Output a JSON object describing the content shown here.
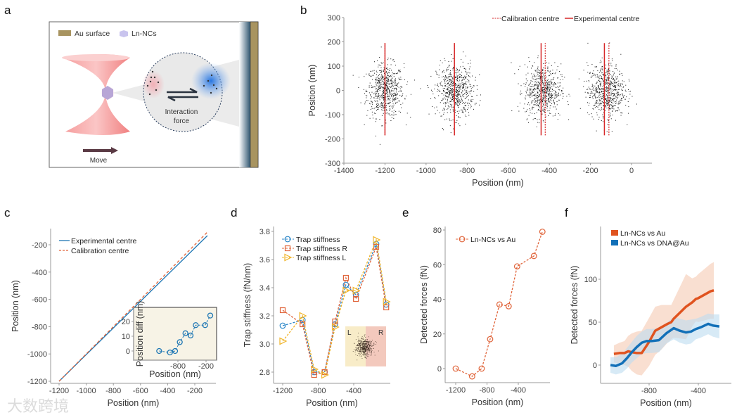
{
  "panel_labels": [
    "a",
    "b",
    "c",
    "d",
    "e",
    "f"
  ],
  "watermark": "大数跨境",
  "panel_a": {
    "legend_au": "Au surface",
    "legend_ln": "Ln-NCs",
    "interaction_line1": "Interaction",
    "interaction_line2": "force",
    "move": "Move",
    "colors": {
      "au": "#a89460",
      "beam": "#f08a8a",
      "nc": "#b9a9d8",
      "arrow": "#5a3a44"
    }
  },
  "chart_data": [
    {
      "panel": "b",
      "type": "scatter",
      "xlabel": "Position (nm)",
      "ylabel": "Position (nm)",
      "xlim": [
        -1400,
        100
      ],
      "ylim": [
        -300,
        300
      ],
      "xticks": [
        "-1400",
        "-1200",
        "-1000",
        "-800",
        "-600",
        "-400",
        "-200",
        "0"
      ],
      "yticks": [
        "300",
        "200",
        "100",
        "0",
        "-100",
        "-200",
        "-300"
      ],
      "legend": [
        "Calibration centre",
        "Experimental centre"
      ],
      "legend_position": "top-right",
      "clusters": [
        {
          "x_center": -1200,
          "y_center": 0,
          "std_x": 45,
          "std_y": 55,
          "n": 650,
          "experimental_centre": -1200,
          "calibration_centre": -1200
        },
        {
          "x_center": -860,
          "y_center": 0,
          "std_x": 45,
          "std_y": 55,
          "n": 650,
          "experimental_centre": -862,
          "calibration_centre": -862
        },
        {
          "x_center": -435,
          "y_center": 0,
          "std_x": 45,
          "std_y": 55,
          "n": 650,
          "experimental_centre": -440,
          "calibration_centre": -420
        },
        {
          "x_center": -125,
          "y_center": 0,
          "std_x": 45,
          "std_y": 55,
          "n": 650,
          "experimental_centre": -132,
          "calibration_centre": -110
        }
      ],
      "centre_line_range": [
        -185,
        195
      ],
      "colors": {
        "points": "#111111",
        "centre": "#d62728"
      }
    },
    {
      "panel": "c",
      "type": "line",
      "xlabel": "Position (nm)",
      "ylabel": "Position (nm)",
      "xticks": [
        "-1200",
        "-1000",
        "-800",
        "-600",
        "-400",
        "-200"
      ],
      "yticks": [
        "-200",
        "-400",
        "-600",
        "-800",
        "-1000",
        "-1200"
      ],
      "legend_position": "top-left",
      "series": [
        {
          "name": "Experimental centre",
          "x": [
            -1200,
            -107
          ],
          "y": [
            -1200,
            -133
          ],
          "color": "#1f77b4",
          "style": "solid"
        },
        {
          "name": "Calibration centre",
          "x": [
            -1200,
            -107
          ],
          "y": [
            -1200,
            -107
          ],
          "color": "#e0643a",
          "style": "dashed"
        }
      ]
    },
    {
      "panel": "c-inset",
      "type": "line",
      "xlabel": "Position (nm)",
      "ylabel": "Position diff (nm)",
      "xticks": [
        "-800",
        "-200"
      ],
      "yticks": [
        "20",
        "10",
        "0"
      ],
      "x": [
        -1200,
        -970,
        -860,
        -760,
        -640,
        -530,
        -420,
        -220,
        -110
      ],
      "y": [
        0,
        -1,
        0,
        6,
        12,
        10.5,
        17.5,
        17.5,
        24
      ],
      "colors": {
        "line": "#1f77b4",
        "bg": "#f7f3e6"
      }
    },
    {
      "panel": "d",
      "type": "line",
      "xlabel": "Position (nm)",
      "ylabel": "Trap stiffness (fN/nm)",
      "xticks": [
        "-1200",
        "-800",
        "-400"
      ],
      "yticks": [
        "3.8",
        "3.6",
        "3.4",
        "3.2",
        "3.0",
        "2.8"
      ],
      "x": [
        -1200,
        -977,
        -846,
        -728,
        -610,
        -488,
        -375,
        -147,
        -34
      ],
      "legend_position": "top-left",
      "series": [
        {
          "name": "Trap stiffness",
          "marker": "circle",
          "color": "#2a86c8",
          "values": [
            3.13,
            3.17,
            2.8,
            2.8,
            3.14,
            3.42,
            3.35,
            3.71,
            3.28
          ]
        },
        {
          "name": "Trap stiffness R",
          "marker": "square",
          "color": "#e0643a",
          "values": [
            3.24,
            3.14,
            2.78,
            2.8,
            3.16,
            3.47,
            3.32,
            3.69,
            3.26
          ]
        },
        {
          "name": "Trap stiffness L",
          "marker": "triangle",
          "color": "#f0b429",
          "values": [
            3.02,
            3.2,
            2.82,
            2.78,
            3.12,
            3.38,
            3.38,
            3.74,
            3.3
          ]
        }
      ],
      "inset_labels": [
        "L",
        "R"
      ]
    },
    {
      "panel": "e",
      "type": "line",
      "xlabel": "Position (nm)",
      "ylabel": "Detected forces (fN)",
      "xticks": [
        "-1200",
        "-800",
        "-400"
      ],
      "yticks": [
        "80",
        "60",
        "40",
        "20",
        "0"
      ],
      "legend_position": "top-left",
      "series": [
        {
          "name": "Ln-NCs vs Au",
          "color": "#e0643a",
          "x": [
            -1200,
            -990,
            -868,
            -760,
            -640,
            -523,
            -415,
            -200,
            -92
          ],
          "values": [
            0,
            -4.5,
            0,
            17,
            37,
            36,
            59,
            65,
            79
          ]
        }
      ]
    },
    {
      "panel": "f",
      "type": "area",
      "xlabel": "Position (nm)",
      "ylabel": "Detected forces (fN)",
      "xticks": [
        "-800",
        "-400"
      ],
      "yticks": [
        "100",
        "50",
        "0"
      ],
      "legend_position": "top-left",
      "series": [
        {
          "name": "Ln-NCs vs Au",
          "color": "#e0531f",
          "band_color": "#f5c9b3",
          "x": [
            -1086,
            -1040,
            -1000,
            -970,
            -940,
            -900,
            -860,
            -800,
            -750,
            -700,
            -650,
            -620,
            -600,
            -550,
            -500,
            -450,
            -420,
            -400,
            -350,
            -300,
            -274
          ],
          "values": [
            13,
            14,
            14,
            16,
            15,
            14,
            14,
            27,
            40,
            44,
            48,
            50,
            54,
            61,
            68,
            73,
            77,
            78,
            82,
            86,
            87
          ],
          "band_halfwidth": [
            10,
            12,
            14,
            18,
            22,
            25,
            26,
            28,
            28,
            26,
            22,
            20,
            22,
            30,
            38,
            28,
            26,
            28,
            30,
            32,
            33
          ]
        },
        {
          "name": "Ln-NCs vs DNA@Au",
          "color": "#1270b8",
          "band_color": "#bcdcf0",
          "x": [
            -1114,
            -1070,
            -1020,
            -980,
            -940,
            -900,
            -860,
            -820,
            -780,
            -720,
            -660,
            -600,
            -550,
            -500,
            -460,
            -420,
            -380,
            -320,
            -280,
            -229
          ],
          "values": [
            0,
            -1,
            2,
            8,
            15,
            21,
            26,
            28,
            28,
            29,
            37,
            43,
            40,
            38,
            39,
            42,
            44,
            48,
            46,
            45
          ],
          "band_halfwidth": [
            9,
            10,
            11,
            12,
            12,
            13,
            13,
            14,
            14,
            14,
            12,
            13,
            14,
            14,
            14,
            12,
            12,
            12,
            13,
            14
          ]
        }
      ]
    }
  ]
}
